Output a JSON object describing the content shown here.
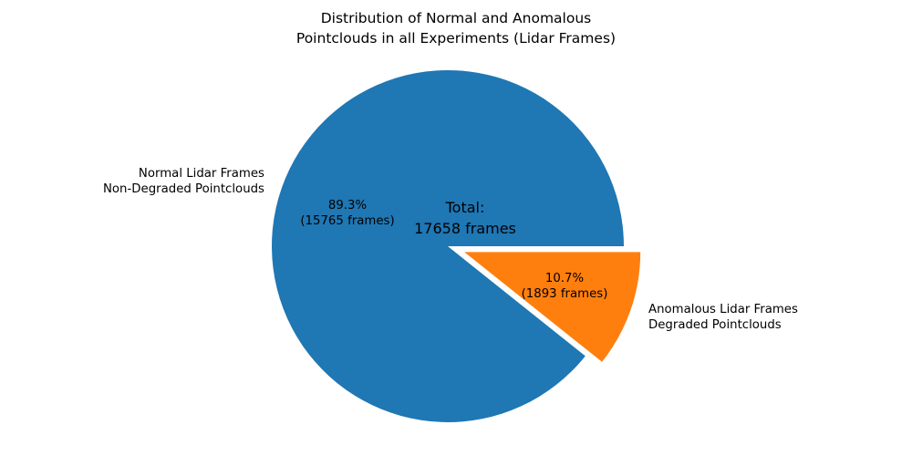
{
  "title": {
    "line1": "Distribution of Normal and Anomalous",
    "line2": "Pointclouds in all Experiments (Lidar Frames)"
  },
  "center_text": {
    "line1": "Total:",
    "line2": "17658 frames"
  },
  "labels": {
    "normal": {
      "line1": "Normal Lidar Frames",
      "line2": "Non-Degraded Pointclouds",
      "pct": "89.3%",
      "count": "(15765 frames)"
    },
    "anomalous": {
      "line1": "Anomalous Lidar Frames",
      "line2": "Degraded Pointclouds",
      "pct": "10.7%",
      "count": "(1893 frames)"
    }
  },
  "chart_data": {
    "type": "pie",
    "title": "Distribution of Normal and Anomalous\nPointclouds in all Experiments (Lidar Frames)",
    "total": 17658,
    "total_label": "Total:\n17658 frames",
    "start_angle": 0,
    "counterclock": true,
    "slices": [
      {
        "label": "Normal Lidar Frames\nNon-Degraded Pointclouds",
        "value": 15765,
        "pct": 89.3,
        "pct_label": "89.3%",
        "count_label": "(15765 frames)",
        "color": "#1f77b4",
        "explode": 0
      },
      {
        "label": "Anomalous Lidar Frames\nDegraded Pointclouds",
        "value": 1893,
        "pct": 10.7,
        "pct_label": "10.7%",
        "count_label": "(1893 frames)",
        "color": "#ff7f0e",
        "explode": 0.1
      }
    ],
    "background": "#ffffff"
  }
}
